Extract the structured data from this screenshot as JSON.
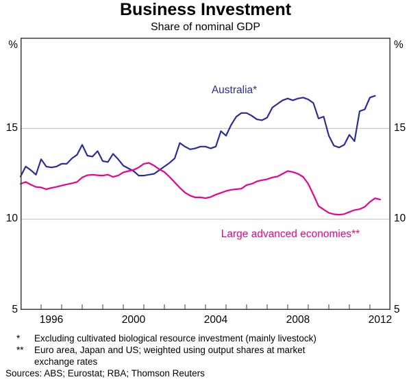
{
  "header": {
    "title": "Business Investment",
    "subtitle": "Share of nominal GDP"
  },
  "footnotes": {
    "fn1_marker": "*",
    "fn1_text": "Excluding cultivated biological resource investment (mainly livestock)",
    "fn2_marker": "**",
    "fn2_text": "Euro area, Japan and US; weighted using output shares at market\nexchange rates",
    "sources": "Sources: ABS; Eurostat; RBA; Thomson Reuters"
  },
  "colors": {
    "australia_line": "#2b2b9e",
    "advanced_line": "#ec008c",
    "gridline": "#bdbdbd",
    "axis_frame": "#3d3d3d"
  },
  "chart_data": {
    "type": "line",
    "title": "Business Investment",
    "subtitle": "Share of nominal GDP",
    "grid": true,
    "legend_position": "inline-labels",
    "x_axis": {
      "min": 1995,
      "max": 2013,
      "tick_interval_years": 1,
      "label_years": [
        "1996",
        "2000",
        "2004",
        "2008",
        "2012"
      ]
    },
    "y_axis": {
      "min": 5,
      "max": 20,
      "unit": "%",
      "gridlines": [
        15,
        10
      ],
      "tick_labels": [
        "15",
        "10"
      ],
      "base_label": "5"
    },
    "series": [
      {
        "name": "Australia",
        "label": "Australia*",
        "color": "#2b2b9e",
        "frequency": "quarterly",
        "x_start": 1995.0,
        "x_step": 0.25,
        "values": [
          12.35,
          12.9,
          12.7,
          12.45,
          13.3,
          12.9,
          12.85,
          12.9,
          13.05,
          13.05,
          13.35,
          13.55,
          14.1,
          13.5,
          13.45,
          13.75,
          13.2,
          13.15,
          13.6,
          13.3,
          12.95,
          12.8,
          12.65,
          12.4,
          12.4,
          12.45,
          12.5,
          12.7,
          12.9,
          13.1,
          13.35,
          14.2,
          14.0,
          13.85,
          13.9,
          14.0,
          14.0,
          13.9,
          14.0,
          14.85,
          14.6,
          15.2,
          15.65,
          15.85,
          15.85,
          15.7,
          15.5,
          15.45,
          15.6,
          16.15,
          16.35,
          16.55,
          16.65,
          16.55,
          16.65,
          16.7,
          16.6,
          16.4,
          15.55,
          15.65,
          14.6,
          14.05,
          13.95,
          14.1,
          14.65,
          14.3,
          15.95,
          16.05,
          16.7,
          16.8
        ]
      },
      {
        "name": "Large advanced economies",
        "label": "Large advanced economies**",
        "color": "#ec008c",
        "frequency": "quarterly",
        "x_start": 1995.0,
        "x_step": 0.25,
        "values": [
          11.95,
          12.05,
          11.9,
          11.78,
          11.75,
          11.65,
          11.72,
          11.78,
          11.85,
          11.92,
          11.98,
          12.05,
          12.3,
          12.42,
          12.45,
          12.42,
          12.4,
          12.45,
          12.33,
          12.4,
          12.58,
          12.65,
          12.72,
          12.85,
          13.05,
          13.1,
          12.95,
          12.75,
          12.6,
          12.33,
          12.03,
          11.73,
          11.47,
          11.3,
          11.2,
          11.2,
          11.16,
          11.22,
          11.35,
          11.45,
          11.55,
          11.62,
          11.65,
          11.68,
          11.88,
          11.95,
          12.08,
          12.15,
          12.2,
          12.3,
          12.35,
          12.5,
          12.65,
          12.6,
          12.5,
          12.33,
          11.95,
          11.35,
          10.72,
          10.53,
          10.35,
          10.27,
          10.25,
          10.28,
          10.4,
          10.5,
          10.55,
          10.68,
          10.95,
          11.15,
          11.08
        ]
      }
    ]
  }
}
